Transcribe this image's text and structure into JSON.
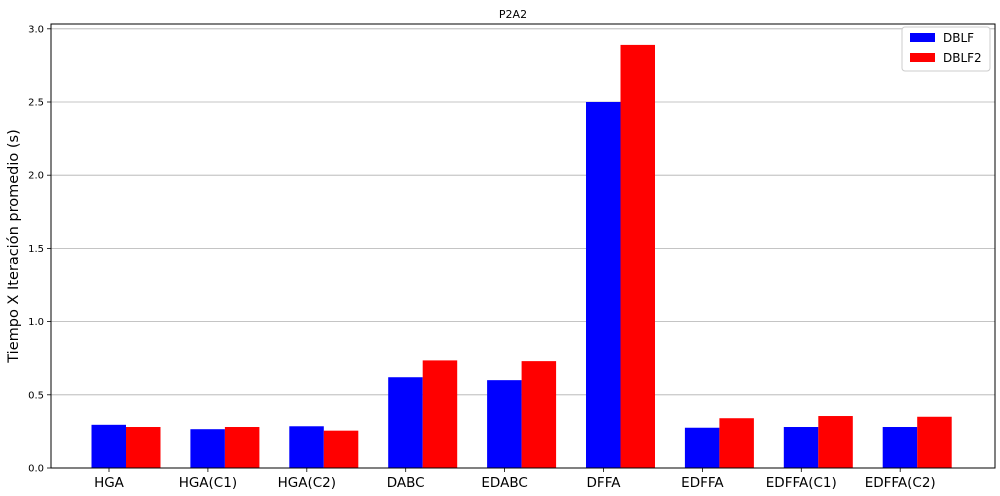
{
  "chart_data": {
    "type": "bar",
    "title": "P2A2",
    "xlabel": "",
    "ylabel": "Tiempo X Iteración promedio (s)",
    "categories": [
      "HGA",
      "HGA(C1)",
      "HGA(C2)",
      "DABC",
      "EDABC",
      "DFFA",
      "EDFFA",
      "EDFFA(C1)",
      "EDFFA(C2)"
    ],
    "series": [
      {
        "name": "DBLF",
        "color": "#0000ff",
        "values": [
          0.295,
          0.265,
          0.285,
          0.62,
          0.6,
          2.5,
          0.275,
          0.28,
          0.28
        ]
      },
      {
        "name": "DBLF2",
        "color": "#ff0000",
        "values": [
          0.28,
          0.28,
          0.255,
          0.735,
          0.73,
          2.89,
          0.34,
          0.355,
          0.35
        ]
      }
    ],
    "ylim": [
      0,
      3.0
    ],
    "yticks": [
      "0.0",
      "0.5",
      "1.0",
      "1.5",
      "2.0",
      "2.5",
      "3.0"
    ],
    "grid": "horizontal",
    "legend_position": "top-right"
  }
}
